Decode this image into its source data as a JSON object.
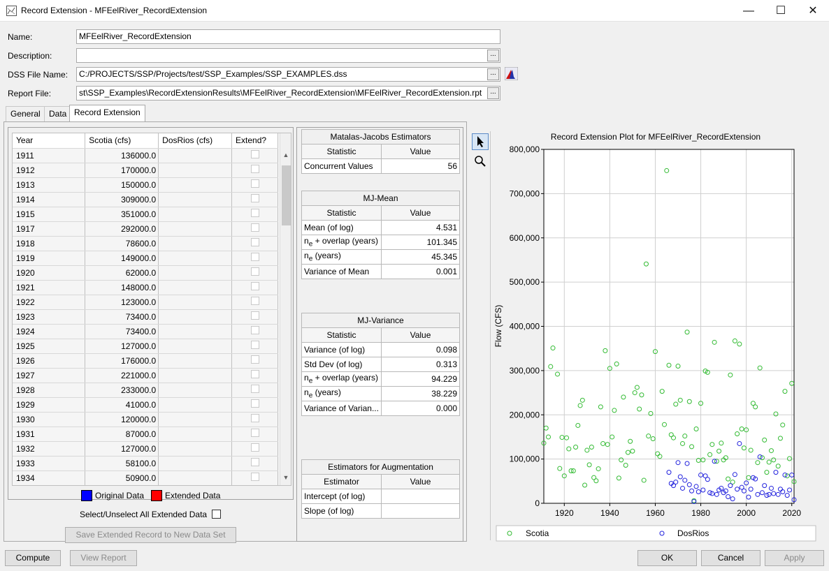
{
  "window": {
    "title": "Record Extension -  MFEelRiver_RecordExtension"
  },
  "form": {
    "name_label": "Name:",
    "name_value": "MFEelRiver_RecordExtension",
    "description_label": "Description:",
    "description_value": "",
    "dss_label": "DSS File Name:",
    "dss_value": "C:/PROJECTS/SSP/Projects/test/SSP_Examples/SSP_EXAMPLES.dss",
    "report_label": "Report File:",
    "report_value": "st\\SSP_Examples\\RecordExtensionResults\\MFEelRiver_RecordExtension\\MFEelRiver_RecordExtension.rpt",
    "browse_label": "..."
  },
  "tabs": [
    "General",
    "Data",
    "Record Extension"
  ],
  "data_table": {
    "headers": [
      "Year",
      "Scotia (cfs)",
      "DosRios (cfs)",
      "Extend?"
    ],
    "rows": [
      [
        "1911",
        "136000.0"
      ],
      [
        "1912",
        "170000.0"
      ],
      [
        "1913",
        "150000.0"
      ],
      [
        "1914",
        "309000.0"
      ],
      [
        "1915",
        "351000.0"
      ],
      [
        "1917",
        "292000.0"
      ],
      [
        "1918",
        "78600.0"
      ],
      [
        "1919",
        "149000.0"
      ],
      [
        "1920",
        "62000.0"
      ],
      [
        "1921",
        "148000.0"
      ],
      [
        "1922",
        "123000.0"
      ],
      [
        "1923",
        "73400.0"
      ],
      [
        "1924",
        "73400.0"
      ],
      [
        "1925",
        "127000.0"
      ],
      [
        "1926",
        "176000.0"
      ],
      [
        "1927",
        "221000.0"
      ],
      [
        "1928",
        "233000.0"
      ],
      [
        "1929",
        "41000.0"
      ],
      [
        "1930",
        "120000.0"
      ],
      [
        "1931",
        "87000.0"
      ],
      [
        "1932",
        "127000.0"
      ],
      [
        "1933",
        "58100.0"
      ],
      [
        "1934",
        "50900.0"
      ]
    ]
  },
  "legend_boxes": {
    "original": "Original Data",
    "extended": "Extended Data",
    "original_color": "#0000ff",
    "extended_color": "#ff0000"
  },
  "select_all_label": "Select/Unselect All Extended Data",
  "save_button": "Save Extended Record to New Data Set",
  "mj_estimators": {
    "title": "Matalas-Jacobs Estimators",
    "stat_header": "Statistic",
    "value_header": "Value",
    "rows": [
      [
        "Concurrent Values",
        "56"
      ]
    ]
  },
  "mj_mean": {
    "title": "MJ-Mean",
    "stat_header": "Statistic",
    "value_header": "Value",
    "rows": [
      [
        "Mean (of log)",
        "4.531"
      ],
      [
        "n",
        "e",
        " + overlap (years)",
        "101.345"
      ],
      [
        "n",
        "e",
        " (years)",
        "45.345"
      ],
      [
        "Variance of Mean",
        "0.001"
      ]
    ]
  },
  "mj_variance": {
    "title": "MJ-Variance",
    "stat_header": "Statistic",
    "value_header": "Value",
    "rows": [
      [
        "Variance (of log)",
        "0.098"
      ],
      [
        "Std Dev (of log)",
        "0.313"
      ],
      [
        "n",
        "e",
        " + overlap (years)",
        "94.229"
      ],
      [
        "n",
        "e",
        " (years)",
        "38.229"
      ],
      [
        "Variance of Varian...",
        "0.000"
      ]
    ]
  },
  "augmentation": {
    "title": "Estimators for Augmentation",
    "stat_header": "Estimator",
    "value_header": "Value",
    "rows": [
      [
        "Intercept (of log)",
        ""
      ],
      [
        "Slope (of log)",
        ""
      ]
    ]
  },
  "chart_data": {
    "type": "scatter",
    "title": "Record Extension Plot for MFEelRiver_RecordExtension",
    "xlabel": "",
    "ylabel": "Flow (CFS)",
    "xlim": [
      1911,
      2021
    ],
    "ylim": [
      0,
      800000
    ],
    "xticks": [
      1920,
      1940,
      1960,
      1980,
      2000,
      2020
    ],
    "xtick_labels": [
      "1920",
      "1940",
      "1960",
      "1980",
      "2000",
      "2020"
    ],
    "yticks": [
      0,
      100000,
      200000,
      300000,
      400000,
      500000,
      600000,
      700000,
      800000
    ],
    "ytick_labels": [
      "0",
      "100,000",
      "200,000",
      "300,000",
      "400,000",
      "500,000",
      "600,000",
      "700,000",
      "800,000"
    ],
    "grid": true,
    "legend_placement": "bottom",
    "series": [
      {
        "name": "Scotia",
        "color": "#33bb33",
        "points": [
          [
            1911,
            136000
          ],
          [
            1912,
            170000
          ],
          [
            1913,
            150000
          ],
          [
            1914,
            309000
          ],
          [
            1915,
            351000
          ],
          [
            1917,
            292000
          ],
          [
            1918,
            78600
          ],
          [
            1919,
            149000
          ],
          [
            1920,
            62000
          ],
          [
            1921,
            148000
          ],
          [
            1922,
            123000
          ],
          [
            1923,
            73400
          ],
          [
            1924,
            73400
          ],
          [
            1925,
            127000
          ],
          [
            1926,
            176000
          ],
          [
            1927,
            221000
          ],
          [
            1928,
            233000
          ],
          [
            1929,
            41000
          ],
          [
            1930,
            120000
          ],
          [
            1931,
            87000
          ],
          [
            1932,
            127000
          ],
          [
            1933,
            58100
          ],
          [
            1934,
            50900
          ],
          [
            1935,
            78000
          ],
          [
            1936,
            218000
          ],
          [
            1937,
            135000
          ],
          [
            1938,
            345000
          ],
          [
            1939,
            133000
          ],
          [
            1940,
            305000
          ],
          [
            1941,
            150000
          ],
          [
            1942,
            210000
          ],
          [
            1943,
            315000
          ],
          [
            1944,
            57000
          ],
          [
            1945,
            98000
          ],
          [
            1946,
            240000
          ],
          [
            1947,
            86000
          ],
          [
            1948,
            115000
          ],
          [
            1949,
            140000
          ],
          [
            1950,
            118000
          ],
          [
            1951,
            250000
          ],
          [
            1952,
            262000
          ],
          [
            1953,
            213000
          ],
          [
            1954,
            245000
          ],
          [
            1955,
            52000
          ],
          [
            1956,
            541000
          ],
          [
            1957,
            152000
          ],
          [
            1958,
            203000
          ],
          [
            1959,
            146000
          ],
          [
            1960,
            343000
          ],
          [
            1961,
            112000
          ],
          [
            1962,
            106000
          ],
          [
            1963,
            253000
          ],
          [
            1964,
            178000
          ],
          [
            1965,
            752000
          ],
          [
            1966,
            312000
          ],
          [
            1967,
            155000
          ],
          [
            1968,
            148000
          ],
          [
            1969,
            224000
          ],
          [
            1970,
            310000
          ],
          [
            1971,
            233000
          ],
          [
            1972,
            135000
          ],
          [
            1973,
            152000
          ],
          [
            1974,
            387000
          ],
          [
            1975,
            230000
          ],
          [
            1976,
            128000
          ],
          [
            1977,
            6000
          ],
          [
            1978,
            168000
          ],
          [
            1979,
            97000
          ],
          [
            1980,
            226000
          ],
          [
            1981,
            98000
          ],
          [
            1982,
            299000
          ],
          [
            1983,
            296000
          ],
          [
            1984,
            110000
          ],
          [
            1985,
            133000
          ],
          [
            1986,
            364000
          ],
          [
            1987,
            95000
          ],
          [
            1988,
            118000
          ],
          [
            1989,
            136000
          ],
          [
            1990,
            98000
          ],
          [
            1991,
            103000
          ],
          [
            1992,
            55000
          ],
          [
            1993,
            290000
          ],
          [
            1994,
            48000
          ],
          [
            1995,
            367000
          ],
          [
            1996,
            157000
          ],
          [
            1997,
            360000
          ],
          [
            1998,
            168000
          ],
          [
            1999,
            125000
          ],
          [
            2000,
            166000
          ],
          [
            2001,
            58000
          ],
          [
            2002,
            120000
          ],
          [
            2003,
            226000
          ],
          [
            2004,
            218000
          ],
          [
            2005,
            92000
          ],
          [
            2006,
            306000
          ],
          [
            2007,
            103000
          ],
          [
            2008,
            143000
          ],
          [
            2009,
            70000
          ],
          [
            2010,
            93000
          ],
          [
            2011,
            119000
          ],
          [
            2012,
            98000
          ],
          [
            2013,
            202000
          ],
          [
            2014,
            84000
          ],
          [
            2015,
            147000
          ],
          [
            2016,
            177000
          ],
          [
            2017,
            253000
          ],
          [
            2018,
            62000
          ],
          [
            2019,
            101000
          ],
          [
            2020,
            271000
          ],
          [
            2021,
            49000
          ]
        ]
      },
      {
        "name": "DosRios",
        "color": "#2222dd",
        "points": [
          [
            1966,
            70000
          ],
          [
            1967,
            45000
          ],
          [
            1968,
            40000
          ],
          [
            1969,
            48000
          ],
          [
            1970,
            92000
          ],
          [
            1971,
            60000
          ],
          [
            1972,
            34000
          ],
          [
            1973,
            52000
          ],
          [
            1974,
            90000
          ],
          [
            1975,
            42000
          ],
          [
            1976,
            28000
          ],
          [
            1977,
            4000
          ],
          [
            1978,
            38000
          ],
          [
            1979,
            26000
          ],
          [
            1980,
            64000
          ],
          [
            1981,
            30000
          ],
          [
            1982,
            62000
          ],
          [
            1983,
            54000
          ],
          [
            1984,
            24000
          ],
          [
            1985,
            22000
          ],
          [
            1986,
            95000
          ],
          [
            1987,
            20000
          ],
          [
            1988,
            30000
          ],
          [
            1989,
            34000
          ],
          [
            1990,
            24000
          ],
          [
            1991,
            28000
          ],
          [
            1992,
            15000
          ],
          [
            1993,
            40000
          ],
          [
            1994,
            10000
          ],
          [
            1995,
            65000
          ],
          [
            1996,
            32000
          ],
          [
            1997,
            135000
          ],
          [
            1998,
            36000
          ],
          [
            1999,
            28000
          ],
          [
            2000,
            46000
          ],
          [
            2001,
            14000
          ],
          [
            2002,
            32000
          ],
          [
            2003,
            58000
          ],
          [
            2004,
            55000
          ],
          [
            2005,
            20000
          ],
          [
            2006,
            105000
          ],
          [
            2007,
            24000
          ],
          [
            2008,
            40000
          ],
          [
            2009,
            18000
          ],
          [
            2010,
            20000
          ],
          [
            2011,
            34000
          ],
          [
            2012,
            22000
          ],
          [
            2013,
            70000
          ],
          [
            2014,
            20000
          ],
          [
            2015,
            32000
          ],
          [
            2016,
            26000
          ],
          [
            2017,
            64000
          ],
          [
            2018,
            18000
          ],
          [
            2019,
            30000
          ],
          [
            2020,
            64000
          ],
          [
            2021,
            8000
          ]
        ]
      }
    ]
  },
  "footer": {
    "compute": "Compute",
    "view_report": "View Report",
    "ok": "OK",
    "cancel": "Cancel",
    "apply": "Apply"
  }
}
